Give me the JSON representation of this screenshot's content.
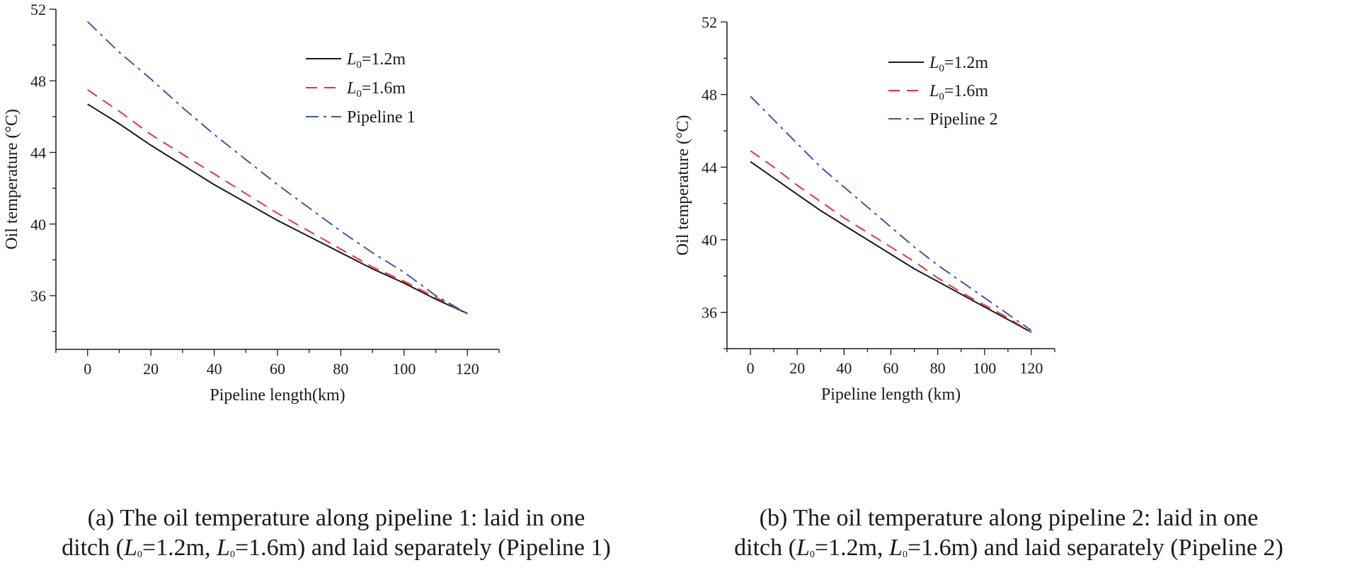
{
  "chart_data": [
    {
      "type": "line",
      "panel": "a",
      "xlabel": "Pipeline length(km)",
      "ylabel": "Oil temperature (°C)",
      "xlim": [
        -10,
        130
      ],
      "ylim": [
        33,
        52
      ],
      "xticks": [
        0,
        20,
        40,
        60,
        80,
        100,
        120
      ],
      "yticks": [
        36,
        40,
        44,
        48,
        52
      ],
      "x_tick_labels": [
        "0",
        "20",
        "40",
        "60",
        "80",
        "100",
        "120"
      ],
      "y_tick_labels": [
        "36",
        "40",
        "44",
        "48",
        "52"
      ],
      "legend_position": "top-right",
      "series": [
        {
          "name": "L0=1.2m",
          "legend_base": "L",
          "legend_sub": "0",
          "legend_rest": "=1.2m",
          "style": "solid",
          "color": "#1a1a1a",
          "x": [
            0,
            10,
            20,
            30,
            40,
            50,
            60,
            70,
            80,
            90,
            100,
            110,
            120
          ],
          "y": [
            46.7,
            45.6,
            44.4,
            43.3,
            42.2,
            41.2,
            40.2,
            39.3,
            38.4,
            37.5,
            36.7,
            35.8,
            35.0
          ]
        },
        {
          "name": "L0=1.6m",
          "legend_base": "L",
          "legend_sub": "0",
          "legend_rest": "=1.6m",
          "style": "dashed",
          "color": "#e8333a",
          "x": [
            0,
            10,
            20,
            30,
            40,
            50,
            60,
            70,
            80,
            90,
            100,
            110,
            120
          ],
          "y": [
            47.5,
            46.3,
            45.0,
            43.9,
            42.8,
            41.7,
            40.6,
            39.6,
            38.6,
            37.6,
            36.8,
            35.9,
            35.0
          ]
        },
        {
          "name": "Pipeline 1",
          "legend_base": "Pipeline 1",
          "legend_sub": "",
          "legend_rest": "",
          "style": "dashdot",
          "color": "#3b5aa3",
          "x": [
            0,
            10,
            20,
            30,
            40,
            50,
            60,
            70,
            80,
            90,
            100,
            110,
            120
          ],
          "y": [
            51.3,
            49.6,
            48.1,
            46.5,
            45.0,
            43.6,
            42.2,
            40.9,
            39.6,
            38.4,
            37.3,
            36.0,
            35.0
          ]
        }
      ],
      "caption": {
        "line1": "(a) The oil temperature along pipeline 1: laid in one",
        "line2_parts": [
          "ditch (",
          "L",
          "0",
          "=1.2m, ",
          "L",
          "0",
          "=1.6m) and laid separately (Pipeline 1)"
        ]
      }
    },
    {
      "type": "line",
      "panel": "b",
      "xlabel": "Pipeline length (km)",
      "ylabel": "Oil temperature (°C)",
      "xlim": [
        -10,
        130
      ],
      "ylim": [
        34,
        52
      ],
      "xticks": [
        0,
        20,
        40,
        60,
        80,
        100,
        120
      ],
      "yticks": [
        36,
        40,
        44,
        48,
        52
      ],
      "x_tick_labels": [
        "0",
        "20",
        "40",
        "60",
        "80",
        "100",
        "120"
      ],
      "y_tick_labels": [
        "36",
        "40",
        "44",
        "48",
        "52"
      ],
      "legend_position": "top-right",
      "series": [
        {
          "name": "L0=1.2m",
          "legend_base": "L",
          "legend_sub": "0",
          "legend_rest": "=1.2m",
          "style": "solid",
          "color": "#1a1a1a",
          "x": [
            0,
            10,
            20,
            30,
            40,
            50,
            60,
            70,
            80,
            90,
            100,
            110,
            120
          ],
          "y": [
            44.3,
            43.4,
            42.5,
            41.6,
            40.8,
            40.0,
            39.2,
            38.4,
            37.7,
            37.0,
            36.3,
            35.6,
            34.9
          ]
        },
        {
          "name": "L0=1.6m",
          "legend_base": "L",
          "legend_sub": "0",
          "legend_rest": "=1.6m",
          "style": "dashed",
          "color": "#e8333a",
          "x": [
            0,
            10,
            20,
            30,
            40,
            50,
            60,
            70,
            80,
            90,
            100,
            110,
            120
          ],
          "y": [
            44.9,
            44.0,
            43.0,
            42.1,
            41.2,
            40.4,
            39.6,
            38.8,
            37.9,
            37.1,
            36.4,
            35.7,
            34.9
          ]
        },
        {
          "name": "Pipeline 2",
          "legend_base": "Pipeline 2",
          "legend_sub": "",
          "legend_rest": "",
          "style": "dashdot",
          "color": "#3b5aa3",
          "x": [
            0,
            10,
            20,
            30,
            40,
            50,
            60,
            70,
            80,
            90,
            100,
            110,
            120
          ],
          "y": [
            47.9,
            46.6,
            45.3,
            44.0,
            42.9,
            41.8,
            40.7,
            39.6,
            38.6,
            37.7,
            36.8,
            35.9,
            35.0
          ]
        }
      ],
      "caption": {
        "line1": "(b) The oil temperature along pipeline 2: laid in one",
        "line2_parts": [
          "ditch (",
          "L",
          "0",
          "=1.2m, ",
          "L",
          "0",
          "=1.6m) and laid separately (Pipeline 2)"
        ]
      }
    }
  ]
}
